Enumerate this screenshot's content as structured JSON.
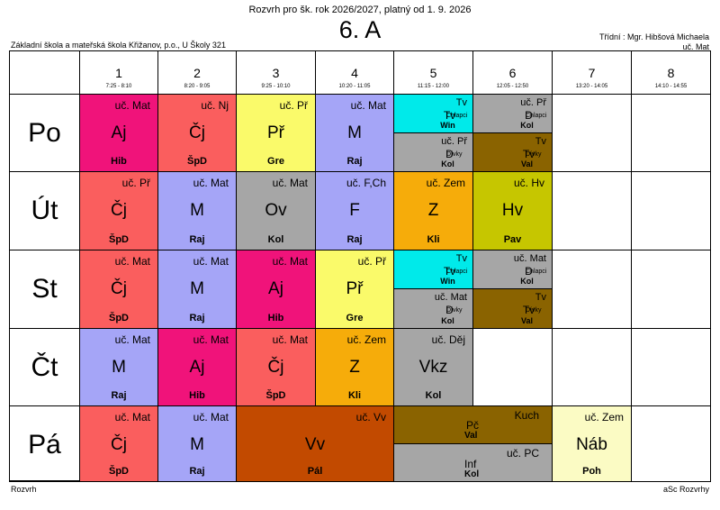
{
  "header": {
    "title": "Rozvrh pro šk. rok 2026/2027, platný od 1. 9. 2026",
    "class": "6. A",
    "school": "Základní škola a mateřská škola Křižanov, p.o., U Školy 321",
    "teacher_line1": "Třídní : Mgr. Hibšová Michaela",
    "teacher_line2": "uč. Mat"
  },
  "footer": {
    "left": "Rozvrh",
    "right": "aSc Rozvrhy"
  },
  "periods": [
    {
      "num": "1",
      "time": "7:25 - 8:10"
    },
    {
      "num": "2",
      "time": "8:20 - 9:05"
    },
    {
      "num": "3",
      "time": "9:25 - 10:10"
    },
    {
      "num": "4",
      "time": "10:20 - 11:05"
    },
    {
      "num": "5",
      "time": "11:15 - 12:00"
    },
    {
      "num": "6",
      "time": "12:05 - 12:50"
    },
    {
      "num": "7",
      "time": "13:20 - 14:05"
    },
    {
      "num": "8",
      "time": "14:10 - 14:55"
    }
  ],
  "days": [
    "Po",
    "Út",
    "St",
    "Čt",
    "Pá"
  ],
  "lessons": {
    "po": [
      {
        "room": "uč. Mat",
        "subject": "Aj",
        "teacher": "Hib",
        "color": "#f0137a"
      },
      {
        "room": "uč. Nj",
        "subject": "Čj",
        "teacher": "ŠpD",
        "color": "#fa5e5e"
      },
      {
        "room": "uč. Př",
        "subject": "Př",
        "teacher": "Gre",
        "color": "#fafa6a"
      },
      {
        "room": "uč. Mat",
        "subject": "M",
        "teacher": "Raj",
        "color": "#a5a5f7"
      }
    ],
    "po_split": [
      {
        "room": "Tv",
        "subject": "Tv",
        "group": "Chlapci",
        "teacher": "Win",
        "color": "#00eaea"
      },
      {
        "room": "uč. Př",
        "subject": "D",
        "group": "Chlapci",
        "teacher": "Kol",
        "color": "#a6a6a6"
      },
      {
        "room": "uč. Př",
        "subject": "D",
        "group": "Dívky",
        "teacher": "Kol",
        "color": "#a6a6a6"
      },
      {
        "room": "Tv",
        "subject": "Tv",
        "group": "Dívky",
        "teacher": "Val",
        "color": "#8a6300"
      }
    ],
    "ut": [
      {
        "room": "uč. Př",
        "subject": "Čj",
        "teacher": "ŠpD",
        "color": "#fa5e5e"
      },
      {
        "room": "uč. Mat",
        "subject": "M",
        "teacher": "Raj",
        "color": "#a5a5f7"
      },
      {
        "room": "uč. Mat",
        "subject": "Ov",
        "teacher": "Kol",
        "color": "#a6a6a6"
      },
      {
        "room": "uč. F,Ch",
        "subject": "F",
        "teacher": "Raj",
        "color": "#a5a5f7"
      },
      {
        "room": "uč. Zem",
        "subject": "Z",
        "teacher": "Kli",
        "color": "#f6ac0a"
      },
      {
        "room": "uč. Hv",
        "subject": "Hv",
        "teacher": "Pav",
        "color": "#c6c600"
      }
    ],
    "st": [
      {
        "room": "uč. Mat",
        "subject": "Čj",
        "teacher": "ŠpD",
        "color": "#fa5e5e"
      },
      {
        "room": "uč. Mat",
        "subject": "M",
        "teacher": "Raj",
        "color": "#a5a5f7"
      },
      {
        "room": "uč. Mat",
        "subject": "Aj",
        "teacher": "Hib",
        "color": "#f0137a"
      },
      {
        "room": "uč. Př",
        "subject": "Př",
        "teacher": "Gre",
        "color": "#fafa6a"
      }
    ],
    "st_split": [
      {
        "room": "Tv",
        "subject": "Tv",
        "group": "Chlapci",
        "teacher": "Win",
        "color": "#00eaea"
      },
      {
        "room": "uč. Mat",
        "subject": "D",
        "group": "Chlapci",
        "teacher": "Kol",
        "color": "#a6a6a6"
      },
      {
        "room": "uč. Mat",
        "subject": "D",
        "group": "Dívky",
        "teacher": "Kol",
        "color": "#a6a6a6"
      },
      {
        "room": "Tv",
        "subject": "Tv",
        "group": "Dívky",
        "teacher": "Val",
        "color": "#8a6300"
      }
    ],
    "ct": [
      {
        "room": "uč. Mat",
        "subject": "M",
        "teacher": "Raj",
        "color": "#a5a5f7"
      },
      {
        "room": "uč. Mat",
        "subject": "Aj",
        "teacher": "Hib",
        "color": "#f0137a"
      },
      {
        "room": "uč. Mat",
        "subject": "Čj",
        "teacher": "ŠpD",
        "color": "#fa5e5e"
      },
      {
        "room": "uč. Zem",
        "subject": "Z",
        "teacher": "Kli",
        "color": "#f6ac0a"
      },
      {
        "room": "uč. Děj",
        "subject": "Vkz",
        "teacher": "Kol",
        "color": "#a6a6a6"
      }
    ],
    "pa": [
      {
        "room": "uč. Mat",
        "subject": "Čj",
        "teacher": "ŠpD",
        "color": "#fa5e5e"
      },
      {
        "room": "uč. Mat",
        "subject": "M",
        "teacher": "Raj",
        "color": "#a5a5f7"
      },
      {
        "room": "uč. Vv",
        "subject": "Vv",
        "teacher": "Pál",
        "color": "#c24a00"
      },
      {
        "room": "uč. Zem",
        "subject": "Náb",
        "teacher": "Poh",
        "color": "#fbfbc4"
      }
    ],
    "pa_split": [
      {
        "room": "Kuch",
        "subject": "Pč",
        "teacher": "Val",
        "color": "#8a6300"
      },
      {
        "room": "uč. PC",
        "subject": "Inf",
        "teacher": "Kol",
        "color": "#a6a6a6"
      }
    ]
  }
}
